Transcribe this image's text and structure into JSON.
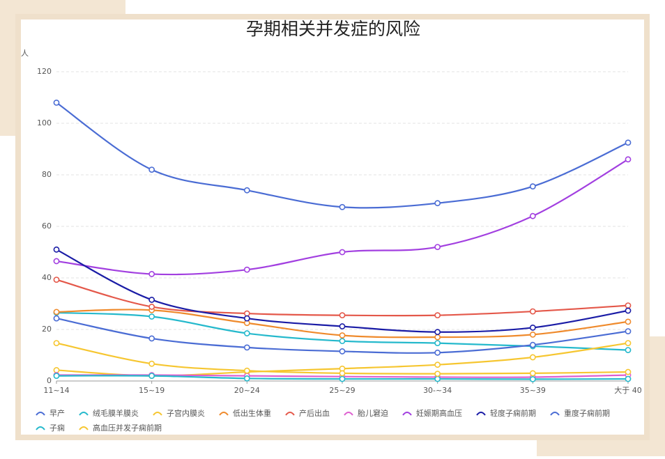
{
  "chart_data": {
    "type": "line",
    "title": "孕期相关并发症的风险",
    "y_label": "人",
    "categories": [
      "11~14",
      "15~19",
      "20~24",
      "25~29",
      "30-~34",
      "35~39",
      "大于 40"
    ],
    "ylim": [
      0,
      120
    ],
    "yticks": [
      0,
      20,
      40,
      60,
      80,
      100,
      120
    ],
    "grid": true,
    "smooth": true,
    "legend": "bottom",
    "series": [
      {
        "name": "早产",
        "color": "#4a6cd4",
        "values": [
          108,
          82,
          74,
          67.5,
          69,
          75.5,
          92.5
        ]
      },
      {
        "name": "绒毛膜羊膜炎",
        "color": "#25b9cc",
        "values": [
          26.5,
          25,
          18.5,
          15.5,
          14.7,
          13.5,
          12
        ]
      },
      {
        "name": "子宫内膜炎",
        "color": "#f6c630",
        "values": [
          4.2,
          2,
          3.5,
          4.8,
          6.3,
          9.2,
          14.7
        ]
      },
      {
        "name": "低出生体重",
        "color": "#ef8a2c",
        "values": [
          26.8,
          27.5,
          22.5,
          17.7,
          17,
          18,
          23
        ]
      },
      {
        "name": "产后出血",
        "color": "#e4584a",
        "values": [
          39.3,
          28.8,
          26.2,
          25.5,
          25.5,
          27,
          29.3
        ]
      },
      {
        "name": "胎儿窘迫",
        "color": "#de5fd0",
        "values": [
          2.3,
          2.3,
          2,
          1.7,
          1.5,
          1.5,
          2.3
        ]
      },
      {
        "name": "妊娠期高血压",
        "color": "#a23fe0",
        "values": [
          46.5,
          41.5,
          43.2,
          50,
          52,
          64,
          86
        ]
      },
      {
        "name": "轻度子痫前期",
        "color": "#1a1ca6",
        "values": [
          51,
          31.5,
          24.3,
          21.2,
          19,
          20.7,
          27.3
        ]
      },
      {
        "name": "重度子痫前期",
        "color": "#4a6cd4",
        "values": [
          24.3,
          16.5,
          13,
          11.5,
          11,
          14,
          19.3
        ]
      },
      {
        "name": "子痫",
        "color": "#25b9cc",
        "values": [
          2,
          2,
          1,
          0.8,
          0.8,
          0.7,
          0.8
        ]
      },
      {
        "name": "高血压并发子痫前期",
        "color": "#f6c630",
        "values": [
          14.7,
          6.7,
          4,
          3,
          2.8,
          3,
          3.5
        ]
      }
    ]
  }
}
